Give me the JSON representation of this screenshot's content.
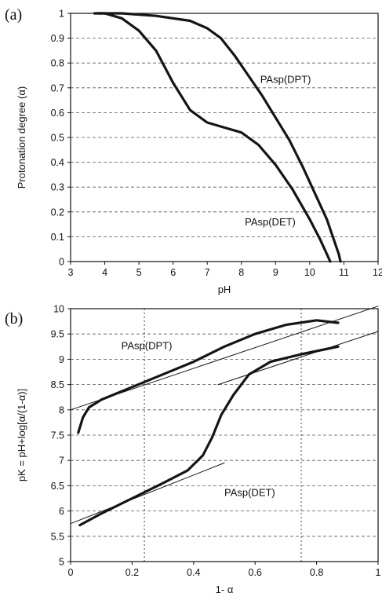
{
  "chart_data": [
    {
      "panel": "(a)",
      "type": "line",
      "xlabel": "pH",
      "ylabel": "Protonation degree (α)",
      "xlim": [
        3,
        12
      ],
      "ylim": [
        0,
        1
      ],
      "xticks": [
        "3",
        "4",
        "5",
        "6",
        "7",
        "8",
        "9",
        "10",
        "11",
        "12"
      ],
      "yticks": [
        "0",
        "0.1",
        "0.2",
        "0.3",
        "0.4",
        "0.5",
        "0.6",
        "0.7",
        "0.8",
        "0.9",
        "1"
      ],
      "grid": "horizontal dashed",
      "series": [
        {
          "name": "PAsp(DPT)",
          "x": [
            3.8,
            4.5,
            5.5,
            6.5,
            7.0,
            7.4,
            7.8,
            8.2,
            8.6,
            9.0,
            9.4,
            9.8,
            10.2,
            10.5,
            10.7,
            10.85,
            10.9
          ],
          "y": [
            1.0,
            1.0,
            0.99,
            0.97,
            0.94,
            0.9,
            0.83,
            0.75,
            0.67,
            0.58,
            0.49,
            0.38,
            0.26,
            0.17,
            0.09,
            0.03,
            0.0
          ]
        },
        {
          "name": "PAsp(DET)",
          "x": [
            3.7,
            4.0,
            4.5,
            5.0,
            5.5,
            6.0,
            6.5,
            7.0,
            7.5,
            8.0,
            8.5,
            9.0,
            9.5,
            10.0,
            10.3,
            10.5,
            10.6
          ],
          "y": [
            1.0,
            1.0,
            0.98,
            0.93,
            0.85,
            0.72,
            0.61,
            0.56,
            0.54,
            0.52,
            0.47,
            0.39,
            0.29,
            0.17,
            0.09,
            0.03,
            0.0
          ]
        }
      ],
      "annotations": [
        "PAsp(DPT)",
        "PAsp(DET)"
      ]
    },
    {
      "panel": "(b)",
      "type": "line",
      "xlabel": "1- α",
      "ylabel": "pK = pH+log[α/(1-α)]",
      "xlim": [
        0,
        1
      ],
      "ylim": [
        5,
        10
      ],
      "xticks": [
        "0",
        "0.2",
        "0.4",
        "0.6",
        "0.8",
        "1"
      ],
      "yticks": [
        "5",
        "5.5",
        "6",
        "6.5",
        "7",
        "7.5",
        "8",
        "8.5",
        "9",
        "9.5",
        "10"
      ],
      "grid": "horizontal dashed; vertical dotted at 0.24 and 0.75",
      "series": [
        {
          "name": "PAsp(DPT)",
          "x": [
            0.025,
            0.04,
            0.06,
            0.1,
            0.2,
            0.3,
            0.4,
            0.5,
            0.6,
            0.7,
            0.8,
            0.87
          ],
          "y": [
            7.55,
            7.85,
            8.05,
            8.2,
            8.45,
            8.7,
            8.95,
            9.25,
            9.5,
            9.68,
            9.77,
            9.72
          ]
        },
        {
          "name": "PAsp(DET)",
          "x": [
            0.03,
            0.1,
            0.2,
            0.3,
            0.38,
            0.43,
            0.46,
            0.49,
            0.53,
            0.58,
            0.65,
            0.75,
            0.87
          ],
          "y": [
            5.72,
            5.95,
            6.25,
            6.55,
            6.8,
            7.1,
            7.45,
            7.9,
            8.3,
            8.7,
            8.95,
            9.1,
            9.25
          ]
        },
        {
          "name": "PAsp(DPT) linear fit",
          "x": [
            0.0,
            1.0
          ],
          "y": [
            8.0,
            10.05
          ]
        },
        {
          "name": "PAsp(DET) linear fit",
          "x": [
            0.0,
            0.5
          ],
          "y": [
            5.75,
            6.95
          ]
        },
        {
          "name": "PAsp(DET) upper fit",
          "x": [
            0.48,
            1.0
          ],
          "y": [
            8.5,
            9.55
          ]
        }
      ],
      "vlines": [
        0.24,
        0.75
      ],
      "annotations": [
        "PAsp(DPT)",
        "PAsp(DET)"
      ]
    }
  ],
  "panel_a": {
    "label": "(a)",
    "xlabel": "pH",
    "ylabel": "Protonation degree (α)",
    "dpt_label": "PAsp(DPT)",
    "det_label": "PAsp(DET)"
  },
  "panel_b": {
    "label": "(b)",
    "xlabel": "1- α",
    "ylabel": "pK = pH+log[α/(1-α)]",
    "dpt_label": "PAsp(DPT)",
    "det_label": "PAsp(DET)"
  }
}
